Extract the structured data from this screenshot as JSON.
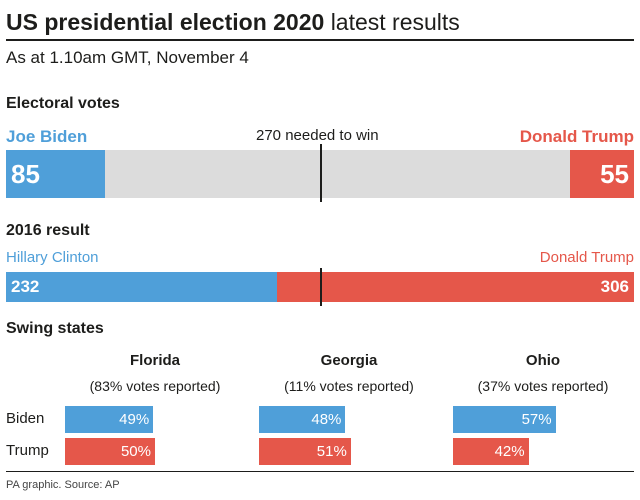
{
  "header": {
    "title_bold": "US presidential election 2020",
    "title_light": "latest results",
    "subtitle": "As at 1.10am GMT, November 4"
  },
  "colors": {
    "dem": "#4f9fd9",
    "rep": "#e5574a",
    "neutral": "#dcdcdc",
    "ink": "#1d1d1b"
  },
  "chart_data": [
    {
      "type": "bar",
      "title": "Electoral votes",
      "total": 538,
      "threshold": 270,
      "threshold_label": "270 needed to win",
      "left": {
        "name": "Joe Biden",
        "value": 85
      },
      "right": {
        "name": "Donald Trump",
        "value": 55
      }
    },
    {
      "type": "bar",
      "title": "2016 result",
      "total": 538,
      "threshold": 270,
      "left": {
        "name": "Hillary Clinton",
        "value": 232
      },
      "right": {
        "name": "Donald Trump",
        "value": 306
      }
    },
    {
      "type": "bar",
      "title": "Swing states",
      "series": [
        {
          "name": "Biden",
          "values": [
            49,
            48,
            57
          ]
        },
        {
          "name": "Trump",
          "values": [
            50,
            51,
            42
          ]
        }
      ],
      "categories": [
        "Florida",
        "Georgia",
        "Ohio"
      ],
      "reported": [
        "(83% votes reported)",
        "(11% votes reported)",
        "(37% votes reported)"
      ],
      "unit": "%",
      "ylim": [
        0,
        100
      ]
    }
  ],
  "footer": {
    "source": "PA graphic. Source: AP"
  }
}
